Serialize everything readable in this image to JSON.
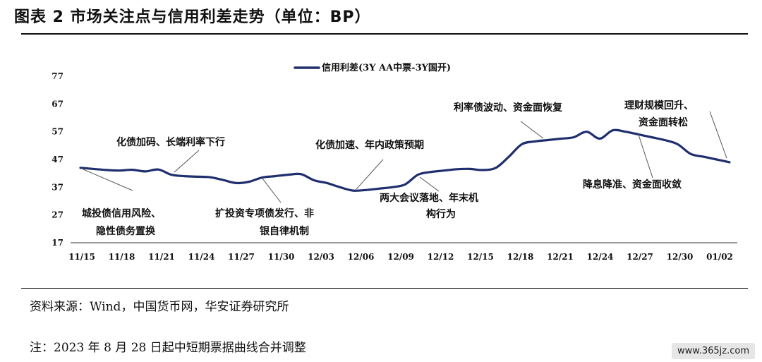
{
  "header": {
    "title": "图表 2 市场关注点与信用利差走势（单位：BP）"
  },
  "footer": {
    "source": "资料来源：Wind，中国货币网，华安证券研究所",
    "note": "注：2023 年 8 月 28 日起中短期票据曲线合并调整",
    "watermark": "www.365jz.com"
  },
  "chart_data": {
    "type": "line",
    "title": "",
    "xlabel": "",
    "ylabel": "",
    "ylim": [
      17,
      77
    ],
    "yticks": [
      17,
      27,
      37,
      47,
      57,
      67,
      77
    ],
    "xtick_labels": [
      "11/15",
      "11/18",
      "11/21",
      "11/24",
      "11/27",
      "11/30",
      "12/03",
      "12/06",
      "12/09",
      "12/12",
      "12/15",
      "12/18",
      "12/21",
      "12/24",
      "12/27",
      "12/30",
      "01/02"
    ],
    "grid": false,
    "legend_position": "top-center",
    "line_color": "#1f2f6e",
    "series": [
      {
        "name": "信用利差(3Y AA中票-3Y国开)",
        "x": [
          0,
          2,
          3,
          4,
          5,
          6,
          7,
          8,
          9,
          10,
          11,
          12,
          13,
          14,
          15,
          16,
          17,
          18,
          19,
          20,
          21,
          22,
          23,
          24,
          25,
          26,
          27,
          28,
          29,
          30,
          31,
          32,
          33,
          34,
          35,
          36,
          37,
          38,
          39,
          40,
          41,
          42,
          43,
          44,
          45,
          46,
          47,
          48,
          49,
          50
        ],
        "values": [
          44,
          43.2,
          43,
          43.3,
          42.7,
          43.4,
          41.5,
          41,
          40.8,
          40.6,
          39.6,
          38.5,
          39,
          40.5,
          41,
          41.5,
          41.7,
          39.5,
          38.5,
          37,
          35.8,
          36,
          36.5,
          37,
          38,
          41.5,
          42.5,
          43,
          43.5,
          43.6,
          43.2,
          44,
          48,
          52.5,
          53.5,
          54,
          54.5,
          55,
          57,
          54.5,
          57.5,
          57,
          56,
          55,
          54,
          52.5,
          49,
          48,
          47,
          46
        ]
      }
    ],
    "annotations": [
      "化债加码、长端利率下行",
      "城投债信用风险、",
      "隐性债务置换",
      "扩投资专项债发行、非",
      "银自律机制",
      "化债加速、年内政策预期",
      "两大会议落地、年末机",
      "构行为",
      "利率债波动、资金面恢复",
      "理财规模回升、",
      "资金面转松",
      "降息降准、资金面收敛"
    ]
  }
}
